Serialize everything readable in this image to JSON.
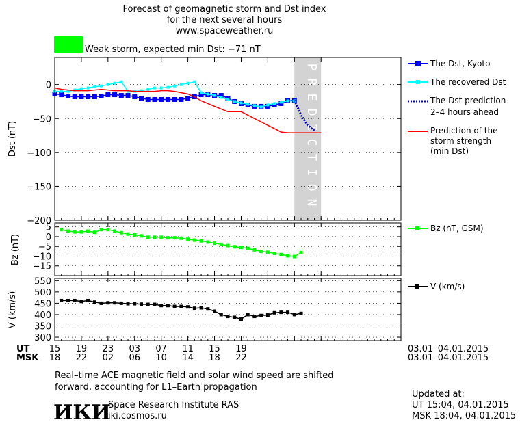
{
  "header": {
    "title_line1": "Forecast of geomagnetic storm and Dst index",
    "title_line2": "for the next several hours",
    "site": "www.spaceweather.ru",
    "status_text": "Weak storm, expected min Dst: −71 nT",
    "status_color": "#00ff00"
  },
  "colors": {
    "kyoto": "#0000ff",
    "recovered": "#00ffff",
    "prediction": "#0000cc",
    "storm": "#ff0000",
    "bz": "#00ff00",
    "v": "#000000",
    "prediction_zone": "#d3d3d3"
  },
  "chart_data": [
    {
      "type": "line",
      "ylabel": "Dst (nT)",
      "ylim": [
        -200,
        40
      ],
      "yticks": [
        -200,
        -150,
        -100,
        -50,
        0
      ],
      "ytick_labels": [
        "−200",
        "−150",
        "−100",
        "−50",
        "0"
      ],
      "prediction_label": "PREDICTION",
      "prediction_range": [
        51,
        55
      ],
      "series": [
        {
          "name": "The Dst, Kyoto",
          "marker": "square",
          "x": [
            15,
            16,
            17,
            18,
            19,
            20,
            21,
            22,
            23,
            24,
            25,
            26,
            27,
            28,
            29,
            30,
            31,
            32,
            33,
            34,
            35,
            36,
            37,
            38,
            39,
            40,
            41,
            42,
            43,
            44,
            45,
            46,
            47,
            48,
            49,
            50,
            51
          ],
          "values": [
            -14,
            -15,
            -17,
            -18,
            -18,
            -18,
            -18,
            -17,
            -15,
            -15,
            -16,
            -16,
            -18,
            -20,
            -22,
            -22,
            -22,
            -22,
            -22,
            -22,
            -20,
            -18,
            -15,
            -15,
            -16,
            -16,
            -20,
            -25,
            -28,
            -30,
            -32,
            -32,
            -32,
            -30,
            -28,
            -24,
            -23
          ]
        },
        {
          "name": "The recovered Dst",
          "marker": "square-small",
          "x": [
            15,
            16,
            17,
            18,
            19,
            20,
            21,
            22,
            23,
            24,
            25,
            26,
            27,
            28,
            29,
            30,
            31,
            32,
            33,
            34,
            35,
            36,
            37,
            38,
            39,
            40,
            41,
            42,
            43,
            44,
            45,
            46,
            47,
            48,
            49,
            50,
            51
          ],
          "values": [
            -10,
            -10,
            -10,
            -8,
            -6,
            -5,
            -3,
            -2,
            0,
            2,
            4,
            -10,
            -10,
            -9,
            -7,
            -5,
            -5,
            -4,
            -2,
            0,
            2,
            4,
            -12,
            -14,
            -16,
            -19,
            -22,
            -25,
            -27,
            -29,
            -31,
            -33,
            -30,
            -28,
            -26,
            -24,
            -24
          ]
        },
        {
          "name": "The Dst prediction 2–4 hours ahead",
          "style": "dotted",
          "x": [
            51,
            52,
            53,
            54
          ],
          "values": [
            -23,
            -45,
            -60,
            -68
          ]
        },
        {
          "name": "Prediction of the storm strength (min Dst)",
          "x": [
            15,
            16,
            17,
            18,
            19,
            20,
            21,
            22,
            23,
            24,
            25,
            26,
            27,
            28,
            29,
            30,
            31,
            32,
            33,
            34,
            35,
            36,
            37,
            38,
            39,
            40,
            41,
            42,
            43,
            44,
            45,
            46,
            47,
            48,
            49,
            50,
            51,
            52,
            53,
            54,
            55
          ],
          "values": [
            -5,
            -7,
            -8,
            -9,
            -9,
            -9,
            -8,
            -7,
            -8,
            -9,
            -9,
            -9,
            -10,
            -10,
            -10,
            -10,
            -9,
            -9,
            -10,
            -12,
            -14,
            -18,
            -24,
            -28,
            -32,
            -36,
            -40,
            -40,
            -40,
            -45,
            -50,
            -55,
            -60,
            -65,
            -70,
            -71,
            -71,
            -71,
            -71,
            -71,
            -71
          ]
        }
      ]
    },
    {
      "type": "line",
      "ylabel": "Bz (nT)",
      "ylim": [
        -20,
        7
      ],
      "yticks": [
        -15,
        -10,
        -5,
        0,
        5
      ],
      "ytick_labels": [
        "−15",
        "−10",
        "−5",
        "0",
        "5"
      ],
      "series": [
        {
          "name": "Bz (nT, GSM)",
          "marker": "square",
          "x": [
            16,
            17,
            18,
            19,
            20,
            21,
            22,
            23,
            24,
            25,
            26,
            27,
            28,
            29,
            30,
            31,
            32,
            33,
            34,
            35,
            36,
            37,
            38,
            39,
            40,
            41,
            42,
            43,
            44,
            45,
            46,
            47,
            48,
            49,
            50,
            51,
            52
          ],
          "values": [
            3.6,
            2.8,
            2.4,
            2.4,
            2.8,
            2.2,
            3.6,
            3.6,
            2.8,
            2.0,
            1.3,
            0.9,
            0.4,
            -0.3,
            -0.3,
            -0.3,
            -0.6,
            -0.6,
            -0.8,
            -1.3,
            -1.8,
            -2.2,
            -2.8,
            -3.4,
            -4.0,
            -4.6,
            -5.2,
            -5.5,
            -6.0,
            -6.8,
            -7.6,
            -8.0,
            -8.6,
            -9.2,
            -9.8,
            -10.2,
            -8.2
          ]
        }
      ]
    },
    {
      "type": "line",
      "ylabel": "V (km/s)",
      "ylim": [
        285,
        560
      ],
      "yticks": [
        300,
        350,
        400,
        450,
        500,
        550
      ],
      "ytick_labels": [
        "300",
        "350",
        "400",
        "450",
        "500",
        "550"
      ],
      "series": [
        {
          "name": "V (km/s)",
          "marker": "square",
          "x": [
            16,
            17,
            18,
            19,
            20,
            21,
            22,
            23,
            24,
            25,
            26,
            27,
            28,
            29,
            30,
            31,
            32,
            33,
            34,
            35,
            36,
            37,
            38,
            39,
            40,
            41,
            42,
            43,
            44,
            45,
            46,
            47,
            48,
            49,
            50,
            51,
            52
          ],
          "values": [
            462,
            462,
            462,
            458,
            462,
            455,
            450,
            452,
            452,
            450,
            448,
            448,
            446,
            445,
            445,
            440,
            440,
            436,
            436,
            434,
            428,
            430,
            425,
            415,
            400,
            392,
            388,
            380,
            400,
            392,
            396,
            398,
            408,
            410,
            410,
            400,
            405
          ]
        }
      ]
    }
  ],
  "x_axis": {
    "min": 15,
    "max": 67,
    "ticks": [
      15,
      19,
      23,
      27,
      31,
      35,
      39,
      43,
      47,
      51,
      55
    ],
    "ut_label": "UT",
    "msk_label": "MSK",
    "ut_ticks": [
      "15",
      "19",
      "23",
      "03",
      "07",
      "11",
      "15",
      "19"
    ],
    "msk_ticks": [
      "18",
      "22",
      "02",
      "06",
      "10",
      "14",
      "18",
      "22"
    ],
    "date_range": "03.01–04.01.2015"
  },
  "legends": {
    "kyoto": "The Dst, Kyoto",
    "recovered": "The recovered Dst",
    "prediction_line1": "The Dst prediction",
    "prediction_line2": "2–4 hours ahead",
    "storm_line1": "Prediction of the",
    "storm_line2": "storm strength",
    "storm_line3": "(min Dst)",
    "bz": "Bz (nT, GSM)",
    "v": "V (km/s)"
  },
  "footer": {
    "note_line1": "Real–time ACE magnetic field and solar wind speed are shifted",
    "note_line2": "forward, accounting for L1–Earth propagation",
    "logo": "ИКИ",
    "institute": "Space Research Institute RAS",
    "url": "iki.cosmos.ru",
    "updated_label": "Updated at:",
    "updated_ut": "UT   15:04, 04.01.2015",
    "updated_msk": "MSK 18:04, 04.01.2015"
  }
}
